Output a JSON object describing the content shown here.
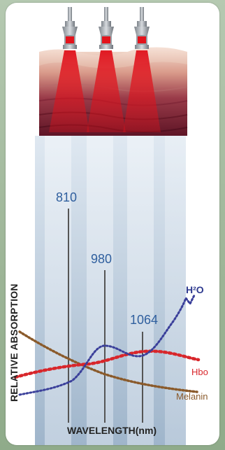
{
  "wavelengths": [
    {
      "label": "810"
    },
    {
      "label": "980"
    },
    {
      "label": "1064"
    }
  ],
  "curves": {
    "water": {
      "label": "H²O",
      "color": "#3a3f9a"
    },
    "hbo": {
      "label": "Hbo",
      "color": "#d8262b"
    },
    "melanin": {
      "label": "Melanin",
      "color": "#8a5a2b"
    }
  },
  "axes": {
    "y_label": "RELATIVE ABSORPTION",
    "x_label": "WAVELENGTH(nm)"
  },
  "colors": {
    "beam": "#d9141a",
    "skin_top": "#e9c3b3",
    "skin_deep": "#6b1a2a",
    "column_fill": "#b9cde0",
    "wavelength_text": "#2f5f9e"
  }
}
